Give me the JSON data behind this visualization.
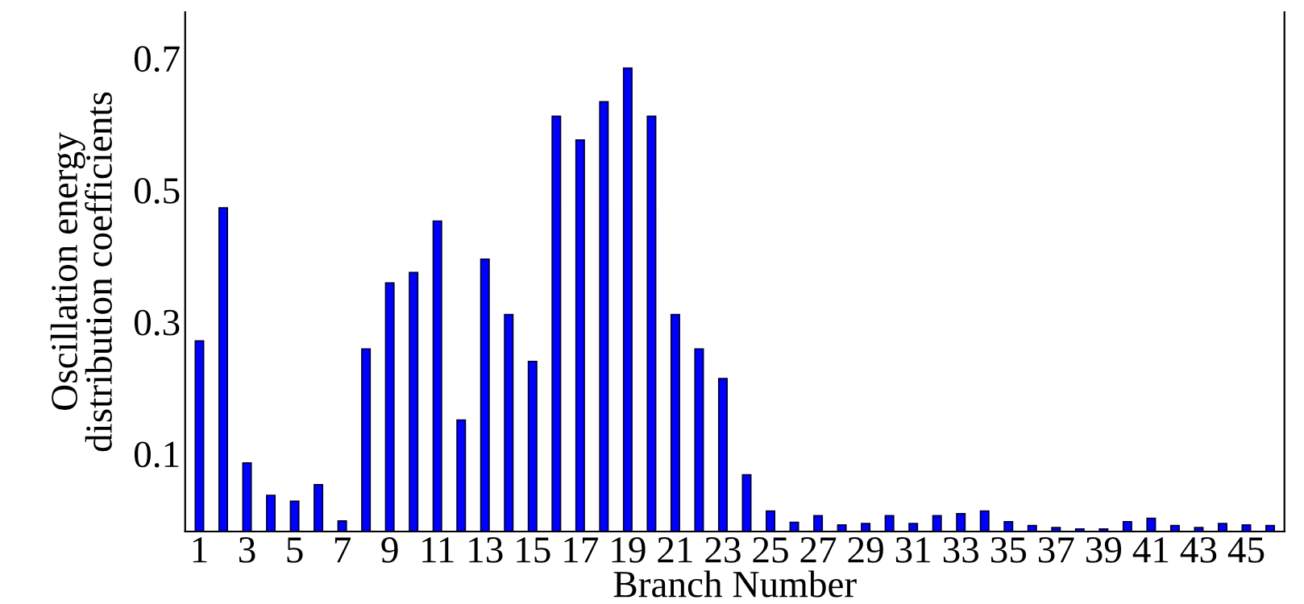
{
  "chart_data": {
    "type": "bar",
    "xlabel": "Branch Number",
    "ylabel": "Oscillation energy\ndistribution coefficients",
    "categories": [
      "1",
      null,
      "3",
      null,
      "5",
      null,
      "7",
      null,
      "9",
      null,
      "11",
      null,
      "13",
      null,
      "15",
      null,
      "17",
      null,
      "19",
      null,
      "21",
      null,
      "23",
      null,
      "25",
      null,
      "27",
      null,
      "29",
      null,
      "31",
      null,
      "33",
      null,
      "35",
      null,
      "37",
      null,
      "39",
      null,
      "41",
      null,
      "43",
      null,
      "45",
      null
    ],
    "values": [
      0.289,
      0.491,
      0.104,
      0.055,
      0.046,
      0.071,
      0.016,
      0.277,
      0.377,
      0.393,
      0.471,
      0.169,
      0.413,
      0.329,
      0.258,
      0.63,
      0.594,
      0.652,
      0.703,
      0.63,
      0.329,
      0.277,
      0.232,
      0.086,
      0.031,
      0.014,
      0.024,
      0.01,
      0.012,
      0.024,
      0.012,
      0.024,
      0.027,
      0.031,
      0.015,
      0.009,
      0.006,
      0.004,
      0.004,
      0.015,
      0.02,
      0.009,
      0.006,
      0.012,
      0.01,
      0.009
    ],
    "base": [
      -0.018,
      -0.018,
      -0.018,
      -0.018,
      -0.018,
      -0.018,
      -0.018,
      -0.018,
      -0.018,
      -0.018,
      -0.018,
      -0.018,
      -0.018,
      -0.018,
      -0.018,
      -0.018,
      -0.018,
      -0.018,
      -0.018,
      -0.018,
      -0.018,
      -0.018,
      -0.018,
      -0.018,
      -0.018,
      -0.018,
      -0.018,
      -0.018,
      -0.018,
      -0.018,
      -0.018,
      -0.018,
      -0.018,
      -0.018,
      -0.018,
      -0.018,
      -0.018,
      -0.018,
      -0.018,
      -0.018,
      -0.018,
      -0.018,
      -0.018,
      -0.018,
      -0.018,
      -0.018
    ],
    "color": "#0000ff",
    "ylim": [
      -0.018,
      0.77
    ],
    "yticks": [
      0.1,
      0.3,
      0.5,
      0.7
    ],
    "grid": false
  }
}
